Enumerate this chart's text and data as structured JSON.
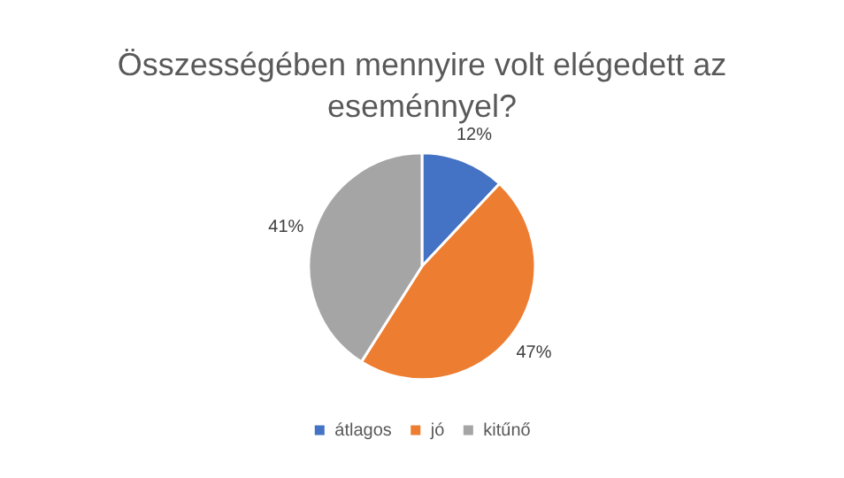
{
  "chart_data": {
    "type": "pie",
    "title": "Összességében mennyire volt elégedett az eseménnyel?",
    "categories": [
      "átlagos",
      "jó",
      "kitűnő"
    ],
    "values": [
      12,
      47,
      41
    ],
    "colors": [
      "#4472c4",
      "#ed7d31",
      "#a5a5a5"
    ],
    "value_labels": [
      "12%",
      "47%",
      "41%"
    ],
    "legend": "bottom"
  }
}
